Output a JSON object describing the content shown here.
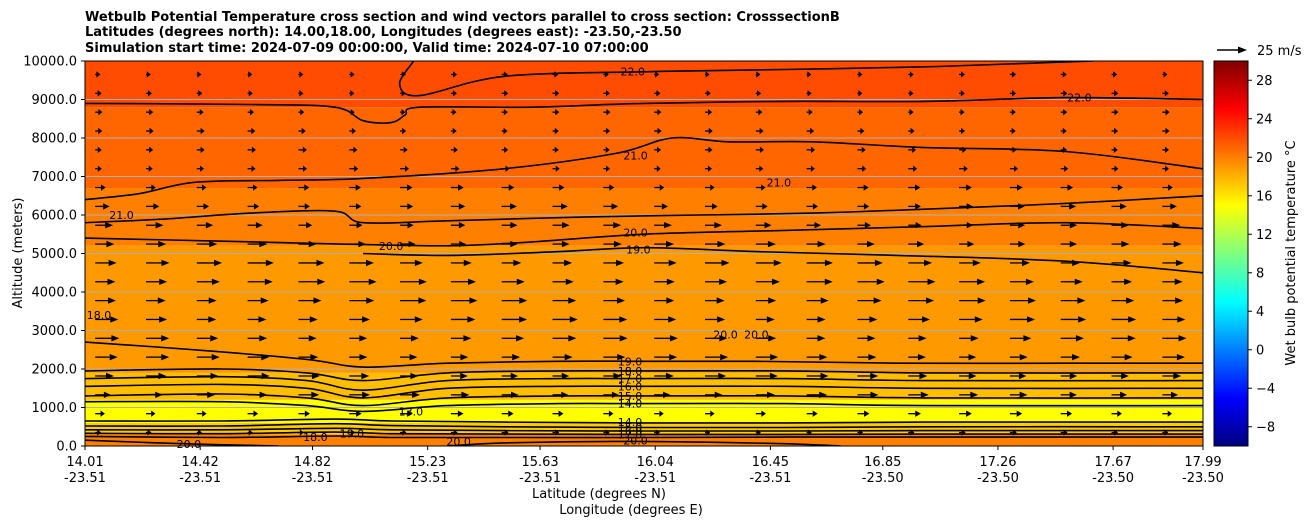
{
  "chart_data": {
    "type": "contour",
    "title_lines": [
      "Wetbulb Potential Temperature cross section and wind vectors parallel to cross section: CrosssectionB",
      "Latitudes (degrees north): 14.00,18.00, Longitudes (degrees east): -23.50,-23.50",
      "Simulation start time: 2024-07-09 00:00:00, Valid time: 2024-07-10 07:00:00"
    ],
    "ylabel": "Altitude (meters)",
    "xlabel_lat": "Latitude (degrees N)",
    "xlabel_lon": "Longitude (degrees E)",
    "ylim": [
      0,
      10000
    ],
    "yticks": [
      "0.0",
      "1000.0",
      "2000.0",
      "3000.0",
      "4000.0",
      "5000.0",
      "6000.0",
      "7000.0",
      "8000.0",
      "9000.0",
      "10000.0"
    ],
    "xlim": [
      14.01,
      17.99
    ],
    "xticks": [
      {
        "lat": "14.01",
        "lon": "-23.51"
      },
      {
        "lat": "14.42",
        "lon": "-23.51"
      },
      {
        "lat": "14.82",
        "lon": "-23.51"
      },
      {
        "lat": "15.23",
        "lon": "-23.51"
      },
      {
        "lat": "15.63",
        "lon": "-23.51"
      },
      {
        "lat": "16.04",
        "lon": "-23.51"
      },
      {
        "lat": "16.45",
        "lon": "-23.51"
      },
      {
        "lat": "16.85",
        "lon": "-23.50"
      },
      {
        "lat": "17.26",
        "lon": "-23.50"
      },
      {
        "lat": "17.67",
        "lon": "-23.50"
      },
      {
        "lat": "17.99",
        "lon": "-23.50"
      }
    ],
    "grid": "horizontal",
    "colorbar": {
      "label": "Wet bulb potential temperature $^\\circ$C",
      "label_display": "Wet bulb potential temperature °C",
      "range": [
        -10,
        30
      ],
      "ticks": [
        -8,
        -4,
        0,
        4,
        8,
        12,
        16,
        20,
        24,
        28
      ],
      "tick_labels": [
        "−8",
        "−4",
        "0",
        "4",
        "8",
        "12",
        "16",
        "20",
        "24",
        "28"
      ]
    },
    "quiver_key": {
      "label": "25 m/s",
      "speed": 25
    },
    "fill_layers": [
      {
        "alt_bottom": 0,
        "alt_top": 300,
        "value": 20
      },
      {
        "alt_bottom": 300,
        "alt_top": 600,
        "value": 17
      },
      {
        "alt_bottom": 600,
        "alt_top": 1200,
        "value": 15
      },
      {
        "alt_bottom": 1200,
        "alt_top": 1900,
        "value": 17.5
      },
      {
        "alt_bottom": 1900,
        "alt_top": 5200,
        "value": 19
      },
      {
        "alt_bottom": 5200,
        "alt_top": 6700,
        "value": 20
      },
      {
        "alt_bottom": 6700,
        "alt_top": 8800,
        "value": 21
      },
      {
        "alt_bottom": 8800,
        "alt_top": 10000,
        "value": 22
      }
    ],
    "contours": [
      {
        "value": "22.0",
        "points": [
          [
            14.01,
            8900
          ],
          [
            14.6,
            8870
          ],
          [
            14.9,
            8800
          ],
          [
            15.0,
            8450
          ],
          [
            15.1,
            8400
          ],
          [
            15.15,
            8600
          ],
          [
            15.2,
            8800
          ],
          [
            15.6,
            8800
          ],
          [
            16.0,
            8900
          ],
          [
            16.5,
            8950
          ],
          [
            17.0,
            8950
          ],
          [
            17.5,
            9050
          ],
          [
            17.99,
            9000
          ]
        ],
        "label_at": [
          17.55,
          9050
        ]
      },
      {
        "value": "22.0",
        "points": [
          [
            15.18,
            10000
          ],
          [
            15.13,
            9400
          ],
          [
            15.2,
            9100
          ],
          [
            15.5,
            9600
          ],
          [
            16.0,
            9720
          ],
          [
            16.5,
            9780
          ],
          [
            17.0,
            9850
          ],
          [
            17.4,
            9950
          ],
          [
            17.6,
            10000
          ]
        ],
        "label_at": [
          15.96,
          9730
        ]
      },
      {
        "value": "21.0",
        "points": [
          [
            14.01,
            6400
          ],
          [
            14.2,
            6550
          ],
          [
            14.4,
            6850
          ],
          [
            14.7,
            6900
          ],
          [
            15.0,
            6950
          ],
          [
            15.5,
            7200
          ],
          [
            15.9,
            7600
          ],
          [
            16.1,
            8000
          ],
          [
            16.3,
            7900
          ],
          [
            16.6,
            7900
          ],
          [
            17.0,
            7750
          ],
          [
            17.5,
            7650
          ],
          [
            17.99,
            7200
          ]
        ],
        "label_at": [
          15.97,
          7550
        ]
      },
      {
        "value": "21.0",
        "points": [
          [
            14.01,
            5800
          ],
          [
            14.3,
            5900
          ],
          [
            14.6,
            6050
          ],
          [
            14.9,
            6100
          ],
          [
            15.0,
            5800
          ],
          [
            15.3,
            5850
          ],
          [
            15.8,
            5950
          ],
          [
            16.2,
            6000
          ],
          [
            16.6,
            6050
          ],
          [
            17.0,
            6150
          ],
          [
            17.5,
            6300
          ],
          [
            17.99,
            6500
          ]
        ],
        "label_at": [
          14.14,
          6000
        ]
      },
      {
        "value": "20.0",
        "points": [
          [
            14.01,
            5400
          ],
          [
            14.5,
            5320
          ],
          [
            14.9,
            5250
          ],
          [
            15.3,
            5200
          ],
          [
            15.6,
            5300
          ],
          [
            16.0,
            5500
          ],
          [
            16.5,
            5600
          ],
          [
            17.0,
            5700
          ],
          [
            17.5,
            5800
          ],
          [
            17.99,
            5650
          ]
        ],
        "label_at": [
          15.97,
          5550
        ]
      },
      {
        "value": "19.0",
        "points": [
          [
            15.0,
            5000
          ],
          [
            15.3,
            4950
          ],
          [
            15.7,
            5050
          ],
          [
            16.0,
            5150
          ],
          [
            16.4,
            5050
          ],
          [
            16.9,
            4950
          ],
          [
            17.5,
            4800
          ],
          [
            17.99,
            4500
          ]
        ],
        "label_at": [
          15.98,
          5100
        ]
      },
      {
        "value": "19.0",
        "points": [
          [
            14.01,
            2700
          ],
          [
            14.4,
            2500
          ],
          [
            14.8,
            2250
          ],
          [
            15.0,
            2050
          ],
          [
            15.3,
            2150
          ],
          [
            15.7,
            2200
          ],
          [
            16.0,
            2200
          ],
          [
            16.4,
            2200
          ],
          [
            16.9,
            2150
          ],
          [
            17.5,
            2150
          ],
          [
            17.99,
            2150
          ]
        ],
        "label_at": [
          15.95,
          2200
        ]
      },
      {
        "value": "18.0",
        "points": [
          [
            14.01,
            1950
          ],
          [
            14.5,
            2000
          ],
          [
            14.8,
            1900
          ],
          [
            15.0,
            1700
          ],
          [
            15.3,
            1900
          ],
          [
            15.7,
            1950
          ],
          [
            16.0,
            1950
          ],
          [
            16.5,
            1950
          ],
          [
            17.0,
            1900
          ],
          [
            17.99,
            1900
          ]
        ],
        "label_at": [
          15.95,
          1950
        ]
      },
      {
        "value": "17.0",
        "points": [
          [
            14.01,
            1750
          ],
          [
            14.5,
            1800
          ],
          [
            14.8,
            1700
          ],
          [
            15.0,
            1450
          ],
          [
            15.3,
            1700
          ],
          [
            15.7,
            1750
          ],
          [
            16.0,
            1750
          ],
          [
            16.5,
            1750
          ],
          [
            17.0,
            1700
          ],
          [
            17.99,
            1700
          ]
        ],
        "label_at": [
          15.95,
          1750
        ]
      },
      {
        "value": "16.0",
        "points": [
          [
            14.01,
            1550
          ],
          [
            14.5,
            1600
          ],
          [
            14.8,
            1500
          ],
          [
            15.0,
            1250
          ],
          [
            15.3,
            1500
          ],
          [
            15.7,
            1550
          ],
          [
            16.0,
            1550
          ],
          [
            16.5,
            1550
          ],
          [
            17.0,
            1500
          ],
          [
            17.99,
            1500
          ]
        ],
        "label_at": [
          15.95,
          1550
        ]
      },
      {
        "value": "15.0",
        "points": [
          [
            14.01,
            1300
          ],
          [
            14.5,
            1350
          ],
          [
            14.8,
            1250
          ],
          [
            15.0,
            1050
          ],
          [
            15.3,
            1250
          ],
          [
            15.7,
            1300
          ],
          [
            16.0,
            1300
          ],
          [
            16.5,
            1300
          ],
          [
            17.0,
            1250
          ],
          [
            17.99,
            1250
          ]
        ],
        "label_at": [
          15.95,
          1300
        ]
      },
      {
        "value": "14.0",
        "points": [
          [
            14.01,
            1150
          ],
          [
            14.5,
            1150
          ],
          [
            14.8,
            1050
          ],
          [
            15.0,
            900
          ],
          [
            15.3,
            1050
          ],
          [
            15.7,
            1100
          ],
          [
            16.0,
            1100
          ],
          [
            16.5,
            1100
          ],
          [
            17.0,
            1050
          ],
          [
            17.99,
            1050
          ]
        ],
        "label_at": [
          15.95,
          1100
        ]
      },
      {
        "value": "14.0",
        "points": [
          [
            14.01,
            650
          ],
          [
            14.5,
            650
          ],
          [
            14.9,
            700
          ],
          [
            15.1,
            650
          ],
          [
            15.5,
            620
          ],
          [
            16.0,
            600
          ],
          [
            16.5,
            600
          ],
          [
            17.0,
            620
          ],
          [
            17.99,
            620
          ]
        ],
        "label_at": [
          15.95,
          620
        ]
      },
      {
        "value": "15.0",
        "points": [
          [
            14.01,
            520
          ],
          [
            14.5,
            520
          ],
          [
            14.9,
            580
          ],
          [
            15.1,
            530
          ],
          [
            15.5,
            500
          ],
          [
            16.0,
            480
          ],
          [
            16.5,
            480
          ],
          [
            17.0,
            500
          ],
          [
            17.99,
            500
          ]
        ],
        "label_at": [
          15.95,
          490
        ]
      },
      {
        "value": "16.0",
        "points": [
          [
            14.01,
            420
          ],
          [
            14.5,
            420
          ],
          [
            14.9,
            460
          ],
          [
            15.1,
            420
          ],
          [
            15.5,
            400
          ],
          [
            16.0,
            390
          ],
          [
            16.5,
            390
          ],
          [
            17.0,
            400
          ],
          [
            17.99,
            400
          ]
        ],
        "label_at": [
          15.95,
          395
        ]
      },
      {
        "value": "17.0",
        "points": [
          [
            14.01,
            330
          ],
          [
            14.5,
            320
          ],
          [
            14.9,
            360
          ],
          [
            15.1,
            320
          ],
          [
            15.5,
            310
          ],
          [
            16.0,
            300
          ],
          [
            16.5,
            300
          ],
          [
            17.0,
            310
          ],
          [
            17.99,
            310
          ]
        ],
        "label_at": [
          15.95,
          305
        ]
      },
      {
        "value": "18.0",
        "points": [
          [
            14.01,
            250
          ],
          [
            14.5,
            220
          ],
          [
            14.9,
            260
          ],
          [
            15.1,
            220
          ],
          [
            15.5,
            220
          ],
          [
            16.0,
            220
          ],
          [
            16.5,
            230
          ],
          [
            17.0,
            230
          ],
          [
            17.99,
            230
          ]
        ],
        "label_at": [
          14.83,
          230
        ]
      },
      {
        "value": "20.0",
        "points": [
          [
            14.01,
            150
          ],
          [
            14.4,
            50
          ],
          [
            14.7,
            0
          ]
        ],
        "label_at": [
          14.38,
          55
        ]
      },
      {
        "value": "20.0",
        "points": [
          [
            15.3,
            0
          ],
          [
            15.5,
            80
          ],
          [
            15.9,
            120
          ],
          [
            16.2,
            100
          ],
          [
            16.5,
            60
          ],
          [
            16.7,
            0
          ]
        ],
        "label_at": [
          15.97,
          140
        ]
      }
    ],
    "extra_labels": [
      {
        "text": "13.0",
        "at": [
          15.17,
          900
        ]
      },
      {
        "text": "18.0",
        "at": [
          14.06,
          3400
        ]
      },
      {
        "text": "20.0",
        "at": [
          15.1,
          5200
        ]
      },
      {
        "text": "20.0",
        "at": [
          16.29,
          2900
        ]
      },
      {
        "text": "20.0",
        "at": [
          16.4,
          2900
        ]
      },
      {
        "text": "21.0",
        "at": [
          16.48,
          6850
        ]
      },
      {
        "text": "19.0",
        "at": [
          14.96,
          320
        ]
      },
      {
        "text": "20.0",
        "at": [
          15.34,
          120
        ]
      }
    ]
  }
}
